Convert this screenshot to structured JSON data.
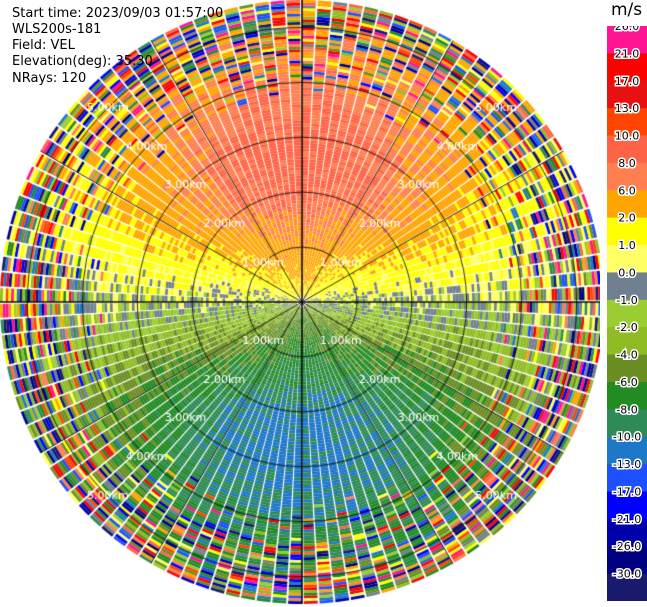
{
  "header": {
    "start_time": "Start time: 2023/09/03 01:57:00",
    "instrument": "WLS200s-181",
    "field": "Field: VEL",
    "elevation": "Elevation(deg): 35.30",
    "nrays": "NRays: 120"
  },
  "chart_data": {
    "type": "heatmap",
    "projection": "polar-ppi",
    "field": "VEL",
    "unit": "m/s",
    "nrays": 120,
    "max_range_km": 5.5,
    "range_rings_km": [
      1,
      2,
      3,
      4,
      5
    ],
    "ring_labels": [
      "1.00km",
      "2.00km",
      "3.00km",
      "4.00km",
      "5.00km"
    ],
    "spoke_angles_deg": [
      0,
      30,
      60,
      90,
      120,
      150,
      180,
      210,
      240,
      270,
      300,
      330
    ],
    "colorbar": {
      "labels": [
        "26.0",
        "21.0",
        "17.0",
        "13.0",
        "10.0",
        "8.0",
        "6.0",
        "2.0",
        "1.0",
        "0.0",
        "-1.0",
        "-2.0",
        "-4.0",
        "-6.0",
        "-8.0",
        "-10.0",
        "-13.0",
        "-17.0",
        "-21.0",
        "-26.0",
        "-30.0"
      ],
      "colors": [
        "#ff1493",
        "#ff0000",
        "#e81010",
        "#ff4500",
        "#ff6347",
        "#ff7f50",
        "#ffa500",
        "#ffff00",
        "#ffff66",
        "#708090",
        "#9acd32",
        "#8fbc23",
        "#6b8e23",
        "#228b22",
        "#2e8b57",
        "#1e78c8",
        "#1e50ff",
        "#0000ff",
        "#0000aa",
        "#000080",
        "#19196e"
      ]
    },
    "velocity_field": {
      "approach_azimuth_deg": 180,
      "recede_azimuth_deg": 0,
      "peak_speed_ms": 10
    }
  }
}
